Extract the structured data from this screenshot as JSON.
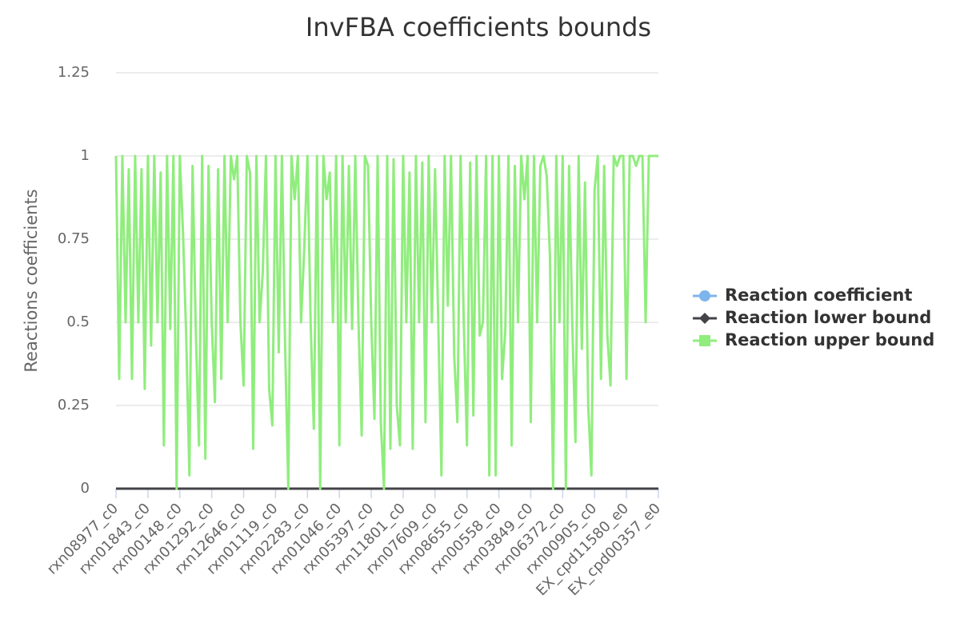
{
  "chart_data": {
    "type": "line",
    "title": "InvFBA coefficients bounds",
    "y_label": "Reactions coefficients",
    "categories": [
      "rxn08977_c0",
      null,
      null,
      null,
      null,
      null,
      null,
      null,
      null,
      null,
      "rxn01843_c0",
      null,
      null,
      null,
      null,
      null,
      null,
      null,
      null,
      null,
      "rxn00148_c0",
      null,
      null,
      null,
      null,
      null,
      null,
      null,
      null,
      null,
      "rxn01292_c0",
      null,
      null,
      null,
      null,
      null,
      null,
      null,
      null,
      null,
      "rxn12646_c0",
      null,
      null,
      null,
      null,
      null,
      null,
      null,
      null,
      null,
      "rxn01119_c0",
      null,
      null,
      null,
      null,
      null,
      null,
      null,
      null,
      null,
      "rxn02283_c0",
      null,
      null,
      null,
      null,
      null,
      null,
      null,
      null,
      null,
      "rxn01046_c0",
      null,
      null,
      null,
      null,
      null,
      null,
      null,
      null,
      null,
      "rxn05397_c0",
      null,
      null,
      null,
      null,
      null,
      null,
      null,
      null,
      null,
      "rxn11801_c0",
      null,
      null,
      null,
      null,
      null,
      null,
      null,
      null,
      null,
      "rxn07609_c0",
      null,
      null,
      null,
      null,
      null,
      null,
      null,
      null,
      null,
      "rxn08655_c0",
      null,
      null,
      null,
      null,
      null,
      null,
      null,
      null,
      null,
      "rxn00558_c0",
      null,
      null,
      null,
      null,
      null,
      null,
      null,
      null,
      null,
      "rxn03849_c0",
      null,
      null,
      null,
      null,
      null,
      null,
      null,
      null,
      null,
      "rxn06372_c0",
      null,
      null,
      null,
      null,
      null,
      null,
      null,
      null,
      null,
      "rxn00905_c0",
      null,
      null,
      null,
      null,
      null,
      null,
      null,
      null,
      null,
      "EX_cpd11580_e0",
      null,
      null,
      null,
      null,
      null,
      null,
      null,
      null,
      null,
      "EX_cpd00357_e0"
    ],
    "series": [
      {
        "name": "Reaction coefficient",
        "color": "#7cb5ec",
        "marker": "circle",
        "values": [
          0,
          0,
          0,
          0,
          0,
          0,
          0,
          0,
          0,
          0,
          0,
          0,
          0,
          0,
          0,
          0,
          0,
          0,
          0,
          0,
          0,
          0,
          0,
          0,
          0,
          0,
          0,
          0,
          0,
          0,
          0,
          0,
          0,
          0,
          0,
          0,
          0,
          0,
          0,
          0,
          0,
          0,
          0,
          0,
          0,
          0,
          0,
          0,
          0,
          0,
          0,
          0,
          0,
          0,
          0,
          0,
          0,
          0,
          0,
          0,
          0,
          0,
          0,
          0,
          0,
          0,
          0,
          0,
          0,
          0,
          0,
          0,
          0,
          0,
          0,
          0,
          0,
          0,
          0,
          0,
          0,
          0,
          0,
          0,
          0,
          0,
          0,
          0,
          0,
          0,
          0,
          0,
          0,
          0,
          0,
          0,
          0,
          0,
          0,
          0,
          0,
          0,
          0,
          0,
          0,
          0,
          0,
          0,
          0,
          0,
          0,
          0,
          0,
          0,
          0,
          0,
          0,
          0,
          0,
          0,
          0,
          0,
          0,
          0,
          0,
          0,
          0,
          0,
          0,
          0,
          0,
          0,
          0,
          0,
          0,
          0,
          0,
          0,
          0,
          0,
          0,
          0,
          0,
          0,
          0,
          0,
          0,
          0,
          0,
          0,
          0,
          0,
          0,
          0,
          0,
          0,
          0,
          0,
          0,
          0,
          0,
          0,
          0,
          0,
          0,
          0,
          0,
          0,
          0,
          0,
          0
        ]
      },
      {
        "name": "Reaction lower bound",
        "color": "#434348",
        "marker": "diamond",
        "values": [
          0,
          0,
          0,
          0,
          0,
          0,
          0,
          0,
          0,
          0,
          0,
          0,
          0,
          0,
          0,
          0,
          0,
          0,
          0,
          0,
          0,
          0,
          0,
          0,
          0,
          0,
          0,
          0,
          0,
          0,
          0,
          0,
          0,
          0,
          0,
          0,
          0,
          0,
          0,
          0,
          0,
          0,
          0,
          0,
          0,
          0,
          0,
          0,
          0,
          0,
          0,
          0,
          0,
          0,
          0,
          0,
          0,
          0,
          0,
          0,
          0,
          0,
          0,
          0,
          0,
          0,
          0,
          0,
          0,
          0,
          0,
          0,
          0,
          0,
          0,
          0,
          0,
          0,
          0,
          0,
          0,
          0,
          0,
          0,
          0,
          0,
          0,
          0,
          0,
          0,
          0,
          0,
          0,
          0,
          0,
          0,
          0,
          0,
          0,
          0,
          0,
          0,
          0,
          0,
          0,
          0,
          0,
          0,
          0,
          0,
          0,
          0,
          0,
          0,
          0,
          0,
          0,
          0,
          0,
          0,
          0,
          0,
          0,
          0,
          0,
          0,
          0,
          0,
          0,
          0,
          0,
          0,
          0,
          0,
          0,
          0,
          0,
          0,
          0,
          0,
          0,
          0,
          0,
          0,
          0,
          0,
          0,
          0,
          0,
          0,
          0,
          0,
          0,
          0,
          0,
          0,
          0,
          0,
          0,
          0,
          0,
          0,
          0,
          0,
          0,
          0,
          0,
          0,
          0,
          0,
          0
        ]
      },
      {
        "name": "Reaction upper bound",
        "color": "#90ed7d",
        "marker": "square",
        "values": [
          1,
          0.33,
          1,
          0.5,
          0.96,
          0.33,
          1,
          0.5,
          0.96,
          0.3,
          1,
          0.43,
          1,
          0.5,
          0.95,
          0.13,
          1,
          0.48,
          1,
          0,
          1,
          0.77,
          0.46,
          0.04,
          0.97,
          0.48,
          0.13,
          1,
          0.09,
          0.97,
          0.5,
          0.26,
          0.96,
          0.33,
          1,
          0.5,
          1,
          0.93,
          1,
          0.5,
          0.31,
          1,
          0.95,
          0.12,
          1,
          0.5,
          0.65,
          1,
          0.3,
          0.19,
          1,
          0.41,
          1,
          0.43,
          0,
          1,
          0.87,
          1,
          0.5,
          0.72,
          1,
          0.5,
          0.18,
          1,
          0,
          1,
          0.87,
          0.95,
          0.5,
          1,
          0.13,
          1,
          0.5,
          0.97,
          0.48,
          1,
          0.5,
          0.16,
          1,
          0.97,
          0.5,
          0.21,
          1,
          0.2,
          0,
          1,
          0.12,
          0.99,
          0.25,
          0.13,
          1,
          0.5,
          0.95,
          0.12,
          1,
          0.5,
          0.98,
          0.2,
          1,
          0.5,
          0.96,
          0.5,
          0.04,
          1,
          0.55,
          1,
          0.4,
          0.2,
          1,
          0.5,
          0.13,
          0.98,
          0.22,
          1,
          0.46,
          0.5,
          1,
          0.04,
          1,
          0.04,
          1,
          0.33,
          0.47,
          1,
          0.13,
          0.97,
          0.5,
          1,
          0.87,
          1,
          0.2,
          1,
          0.5,
          0.97,
          1,
          0.94,
          0.7,
          0,
          1,
          0.5,
          1,
          0,
          0.97,
          0.5,
          0.14,
          1,
          0.42,
          0.92,
          0.25,
          0.04,
          0.9,
          1,
          0.33,
          0.97,
          0.46,
          0.31,
          1,
          0.97,
          1,
          1,
          0.33,
          1,
          1,
          0.97,
          1,
          1,
          0.5,
          1,
          1,
          1,
          1
        ]
      }
    ],
    "ylim": [
      0,
      1.25
    ],
    "yticks": [
      0,
      0.25,
      0.5,
      0.75,
      1,
      1.25
    ],
    "grid": true,
    "legend": "right"
  }
}
